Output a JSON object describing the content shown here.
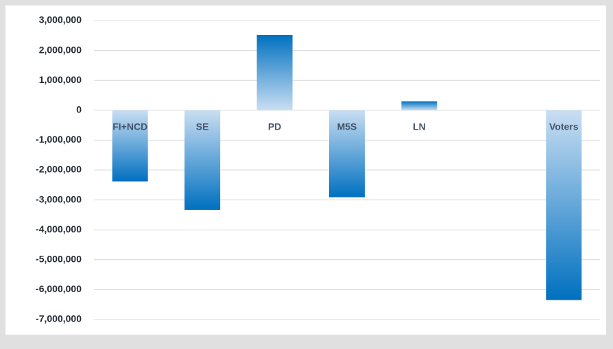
{
  "chart_data": {
    "type": "bar",
    "categories": [
      "FI+NCD",
      "SE",
      "PD",
      "M5S",
      "LN",
      null,
      "Voters"
    ],
    "values": [
      -2380000,
      -3330000,
      2520000,
      -2910000,
      300000,
      null,
      -6350000
    ],
    "color": "#0070c0",
    "ylim": [
      -7000000,
      3000000
    ],
    "yticks": [
      {
        "value": -7000000,
        "label": "-7,000,000"
      },
      {
        "value": -6000000,
        "label": "-6,000,000"
      },
      {
        "value": -5000000,
        "label": "-5,000,000"
      },
      {
        "value": -4000000,
        "label": "-4,000,000"
      },
      {
        "value": -3000000,
        "label": "-3,000,000"
      },
      {
        "value": -2000000,
        "label": "-2,000,000"
      },
      {
        "value": -1000000,
        "label": "-1,000,000"
      },
      0,
      {
        "value": 1000000,
        "label": "1,000,000"
      },
      {
        "value": 2000000,
        "label": "2,000,000"
      },
      {
        "value": 3000000,
        "label": "3,000,000"
      }
    ],
    "grid": true
  }
}
